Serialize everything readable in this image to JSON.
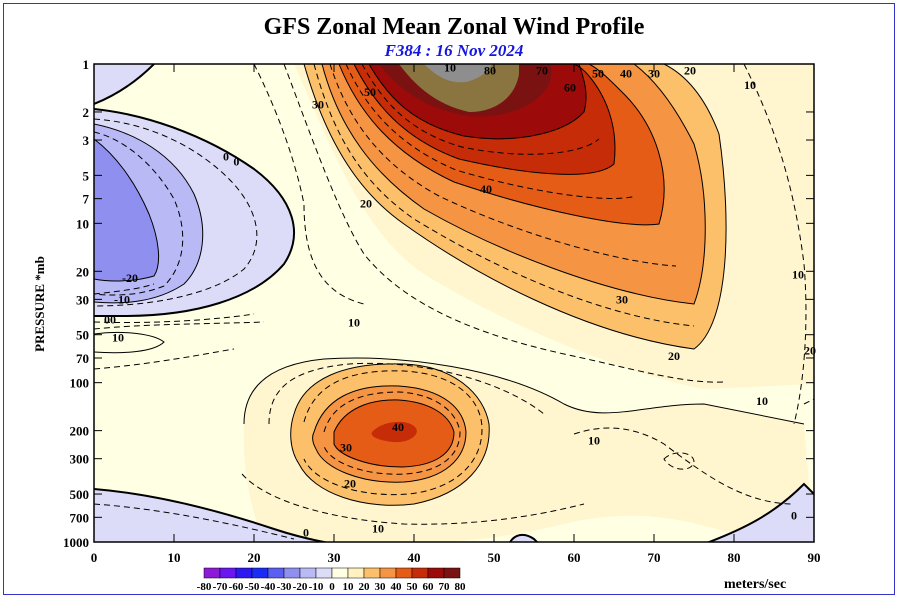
{
  "chart_data": {
    "type": "contour",
    "title": "GFS Zonal Mean Zonal Wind Profile",
    "subtitle": "F384 : 16 Nov 2024",
    "ylabel": "PRESSURE *mb",
    "xlabel": "",
    "x_ticks": [
      "0",
      "10",
      "20",
      "30",
      "40",
      "50",
      "60",
      "70",
      "80",
      "90"
    ],
    "y_ticks": [
      "1",
      "2",
      "3",
      "5",
      "7",
      "10",
      "20",
      "30",
      "50",
      "70",
      "100",
      "200",
      "300",
      "500",
      "700",
      "1000"
    ],
    "xlim": [
      0,
      90
    ],
    "ylim_pressure_mb": [
      1000,
      1
    ],
    "y_scale": "log",
    "contour_interval": 10,
    "units": "meters/sec",
    "colorbar": {
      "levels": [
        "-80",
        "-70",
        "-60",
        "-50",
        "-40",
        "-30",
        "-20",
        "-10",
        "0",
        "10",
        "20",
        "30",
        "40",
        "50",
        "60",
        "70",
        "80"
      ],
      "colors": [
        "#8c1ad6",
        "#6a16f0",
        "#2d18f2",
        "#1b2cf5",
        "#5a5ff2",
        "#8f8ff0",
        "#b8b9f5",
        "#dcdcf8",
        "#ffffe3",
        "#fff2c0",
        "#fcc06a",
        "#f59442",
        "#e55c17",
        "#c72c08",
        "#9c0a0a",
        "#7a1212",
        "#8a7440"
      ]
    },
    "contour_labels": [
      {
        "text": "10",
        "lat": 44.5,
        "p": 1.05
      },
      {
        "text": "80",
        "lat": 49.5,
        "p": 1.1
      },
      {
        "text": "70",
        "lat": 56,
        "p": 1.1
      },
      {
        "text": "60",
        "lat": 59.5,
        "p": 1.4
      },
      {
        "text": "50",
        "lat": 63,
        "p": 1.15
      },
      {
        "text": "40",
        "lat": 66.5,
        "p": 1.15
      },
      {
        "text": "30",
        "lat": 70,
        "p": 1.15
      },
      {
        "text": "20",
        "lat": 74.5,
        "p": 1.1
      },
      {
        "text": "10",
        "lat": 82,
        "p": 1.35
      },
      {
        "text": "30",
        "lat": 28,
        "p": 1.8
      },
      {
        "text": "50",
        "lat": 34.5,
        "p": 1.5
      },
      {
        "text": "0",
        "lat": 16.5,
        "p": 3.8
      },
      {
        "text": "0",
        "lat": 17.8,
        "p": 4.1
      },
      {
        "text": "20",
        "lat": 34,
        "p": 7.5
      },
      {
        "text": "40",
        "lat": 49,
        "p": 6.1
      },
      {
        "text": "30",
        "lat": 66,
        "p": 30
      },
      {
        "text": "20",
        "lat": 72.5,
        "p": 68
      },
      {
        "text": "10",
        "lat": 32.5,
        "p": 42
      },
      {
        "text": "-20",
        "lat": 4.5,
        "p": 22
      },
      {
        "text": "-10",
        "lat": 3.5,
        "p": 30
      },
      {
        "text": "00",
        "lat": 2,
        "p": 40
      },
      {
        "text": "10",
        "lat": 3,
        "p": 52
      },
      {
        "text": "40",
        "lat": 38,
        "p": 190
      },
      {
        "text": "30",
        "lat": 31.5,
        "p": 255
      },
      {
        "text": "20",
        "lat": 32,
        "p": 430
      },
      {
        "text": "10",
        "lat": 35.5,
        "p": 820
      },
      {
        "text": "0",
        "lat": 26.5,
        "p": 870
      },
      {
        "text": "10",
        "lat": 62.5,
        "p": 230
      },
      {
        "text": "10",
        "lat": 83.5,
        "p": 130
      },
      {
        "text": "20",
        "lat": 89.5,
        "p": 63
      },
      {
        "text": "10",
        "lat": 88,
        "p": 21
      },
      {
        "text": "0",
        "lat": 87.5,
        "p": 680
      }
    ]
  }
}
